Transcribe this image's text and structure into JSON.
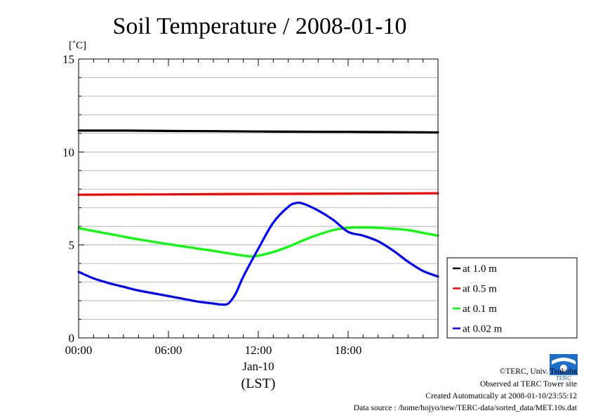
{
  "chart_data": {
    "type": "line",
    "title": "Soil Temperature / 2008-01-10",
    "yunit": "[˚C]",
    "ylim": [
      0,
      15
    ],
    "yticks": [
      0,
      5,
      10,
      15
    ],
    "grid_y": true,
    "grid_y_minor_step": 1,
    "xlim_hours": [
      0,
      24
    ],
    "xticks": [
      {
        "hour": 0,
        "label": "00:00"
      },
      {
        "hour": 6,
        "label": "06:00"
      },
      {
        "hour": 12,
        "label": "12:00"
      },
      {
        "hour": 18,
        "label": "18:00"
      }
    ],
    "xdate_label": "Jan-10",
    "xlabel": "(LST)",
    "legend_position": "right",
    "series": [
      {
        "name": "at 1.0 m",
        "color": "#000000",
        "x": [
          0,
          3,
          6,
          9,
          12,
          15,
          18,
          21,
          24
        ],
        "y": [
          11.15,
          11.15,
          11.13,
          11.12,
          11.1,
          11.09,
          11.08,
          11.07,
          11.05
        ]
      },
      {
        "name": "at 0.5 m",
        "color": "#ff0000",
        "x": [
          0,
          3,
          6,
          9,
          12,
          15,
          18,
          21,
          24
        ],
        "y": [
          7.7,
          7.71,
          7.72,
          7.73,
          7.74,
          7.75,
          7.76,
          7.77,
          7.78
        ]
      },
      {
        "name": "at 0.1 m",
        "color": "#00ff00",
        "x": [
          0,
          1,
          2,
          3,
          4,
          5,
          6,
          7,
          8,
          9,
          10,
          11,
          11.5,
          12,
          13,
          14,
          15,
          16,
          17,
          18,
          19,
          20,
          21,
          22,
          23,
          24
        ],
        "y": [
          5.9,
          5.75,
          5.6,
          5.45,
          5.3,
          5.17,
          5.04,
          4.92,
          4.8,
          4.68,
          4.55,
          4.43,
          4.38,
          4.42,
          4.62,
          4.9,
          5.25,
          5.55,
          5.8,
          5.92,
          5.94,
          5.92,
          5.87,
          5.8,
          5.65,
          5.5
        ]
      },
      {
        "name": "at 0.02 m",
        "color": "#0000ff",
        "x": [
          0,
          1,
          2,
          3,
          4,
          5,
          6,
          7,
          8,
          9,
          9.5,
          10,
          10.5,
          11,
          12,
          13,
          14,
          14.5,
          15,
          16,
          17,
          18,
          19,
          20,
          21,
          22,
          23,
          24
        ],
        "y": [
          3.55,
          3.2,
          2.95,
          2.75,
          2.55,
          2.4,
          2.25,
          2.1,
          1.95,
          1.85,
          1.8,
          1.85,
          2.4,
          3.3,
          4.8,
          6.2,
          7.05,
          7.25,
          7.22,
          6.85,
          6.35,
          5.7,
          5.5,
          5.2,
          4.7,
          4.1,
          3.6,
          3.3
        ]
      }
    ]
  },
  "footer": {
    "copyright": "©TERC, Univ. Tsukuba",
    "observed": "Observed at TERC Tower site",
    "created": "Created Automatically at 2008-01-10/23:55:12",
    "source": "Data source : /home/hojyo/new/TERC-data/sorted_data/MET.10s.dat"
  },
  "logo": {
    "text": "TERC",
    "color": "#1d6ec8"
  }
}
